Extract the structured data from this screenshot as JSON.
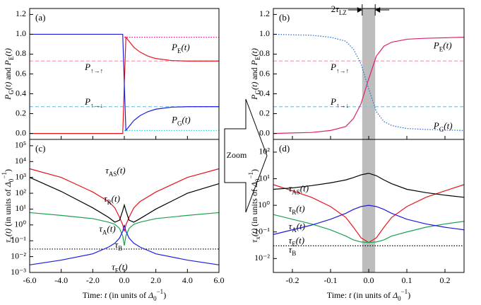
{
  "chart_data": [
    {
      "type": "line",
      "panel": "(a)",
      "xlim": [
        -6,
        6
      ],
      "ylim": [
        -0.06,
        1.26
      ],
      "log": false,
      "xticks": [
        {
          "value": -6,
          "label": "-6.0"
        },
        {
          "value": -4,
          "label": "-4.0"
        },
        {
          "value": -2,
          "label": "-2.0"
        },
        {
          "value": 0,
          "label": "0.0"
        },
        {
          "value": 2,
          "label": "2.0"
        },
        {
          "value": 4,
          "label": "4.0"
        },
        {
          "value": 6,
          "label": "6.0"
        }
      ],
      "yticks": [
        {
          "value": 0,
          "label": "0.0"
        },
        0.2,
        0.4,
        0.6,
        0.8,
        {
          "value": 1,
          "label": "1.0"
        },
        1.2
      ],
      "ylabel": [
        {
          "text": "P",
          "style": "i"
        },
        {
          "text": "G",
          "style": "sub"
        },
        {
          "text": "(t)",
          "style": "i"
        },
        {
          "text": " and ",
          "style": "r"
        },
        {
          "text": "P",
          "style": "i"
        },
        {
          "text": "E",
          "style": "sub"
        },
        {
          "text": "(t)",
          "style": "i"
        }
      ],
      "x": [
        -6,
        -4,
        -2,
        -0.5,
        -0.1,
        0,
        0.1,
        0.3,
        0.6,
        1,
        1.5,
        2,
        3,
        4,
        5,
        6
      ],
      "series": [
        {
          "name": [
            {
              "text": "P",
              "style": "i"
            },
            {
              "text": "↑→↑",
              "style": "sub"
            }
          ],
          "color": "#f5a0b4",
          "dash": "dash",
          "x": [
            -6,
            6
          ],
          "values": [
            0.73,
            0.73
          ]
        },
        {
          "name": [
            {
              "text": "P",
              "style": "i"
            },
            {
              "text": "↑→↓",
              "style": "sub"
            }
          ],
          "color": "#7ec8e6",
          "dash": "dash",
          "x": [
            -6,
            6
          ],
          "values": [
            0.27,
            0.27
          ]
        },
        {
          "color": "#e01f8c",
          "dash": "dot",
          "x": [
            0,
            6
          ],
          "values": [
            0.97,
            0.97
          ]
        },
        {
          "color": "#2fd6d6",
          "dash": "dot",
          "x": [
            0,
            6
          ],
          "values": [
            0.03,
            0.03
          ]
        },
        {
          "name": [
            {
              "text": "P",
              "style": "i"
            },
            {
              "text": "E",
              "style": "sub"
            },
            {
              "text": "(t)",
              "style": "i"
            }
          ],
          "color": "#e8141c",
          "dash": "solid",
          "values": [
            0,
            0,
            0,
            0,
            0,
            0.5,
            0.97,
            0.93,
            0.87,
            0.82,
            0.78,
            0.755,
            0.735,
            0.73,
            0.73,
            0.73
          ]
        },
        {
          "name": [
            {
              "text": "P",
              "style": "i"
            },
            {
              "text": "G",
              "style": "sub"
            },
            {
              "text": "(t)",
              "style": "i"
            }
          ],
          "color": "#1c1ce0",
          "dash": "solid",
          "values": [
            1,
            1,
            1,
            1,
            1,
            0.5,
            0.03,
            0.07,
            0.13,
            0.18,
            0.22,
            0.245,
            0.265,
            0.27,
            0.27,
            0.27
          ]
        }
      ]
    },
    {
      "type": "line",
      "panel": "(b)",
      "xlim": [
        -0.25,
        0.25
      ],
      "ylim": [
        -0.06,
        1.26
      ],
      "log": false,
      "xticks": [
        -0.2,
        -0.1,
        {
          "value": 0,
          "label": "0.0"
        },
        0.1,
        0.2
      ],
      "yticks": [
        {
          "value": 0,
          "label": "0.0"
        },
        0.2,
        0.4,
        0.6,
        0.8,
        {
          "value": 1,
          "label": "1.0"
        },
        1.2
      ],
      "ylabel": [
        {
          "text": "P",
          "style": "i"
        },
        {
          "text": "G",
          "style": "sub"
        },
        {
          "text": "(t)",
          "style": "i"
        },
        {
          "text": " and ",
          "style": "r"
        },
        {
          "text": "P",
          "style": "i"
        },
        {
          "text": "E",
          "style": "sub"
        },
        {
          "text": "(t)",
          "style": "i"
        }
      ],
      "band": [
        -0.017,
        0.017
      ],
      "band_label": [
        {
          "text": "2",
          "style": "r"
        },
        {
          "text": "τ",
          "style": "i"
        },
        {
          "text": "LZ",
          "style": "sub"
        }
      ],
      "x": [
        -0.25,
        -0.2,
        -0.15,
        -0.1,
        -0.06,
        -0.04,
        -0.02,
        0,
        0.02,
        0.04,
        0.06,
        0.1,
        0.15,
        0.2,
        0.25
      ],
      "series": [
        {
          "name": [
            {
              "text": "P",
              "style": "i"
            },
            {
              "text": "↑→↑",
              "style": "sub"
            }
          ],
          "color": "#f5a0b4",
          "dash": "dash",
          "x": [
            -0.25,
            0.25
          ],
          "values": [
            0.73,
            0.73
          ]
        },
        {
          "name": [
            {
              "text": "P",
              "style": "i"
            },
            {
              "text": "↑→↓",
              "style": "sub"
            }
          ],
          "color": "#7ec8e6",
          "dash": "dash",
          "x": [
            -0.25,
            0.25
          ],
          "values": [
            0.27,
            0.27
          ]
        },
        {
          "name": [
            {
              "text": "P",
              "style": "i"
            },
            {
              "text": "E",
              "style": "sub"
            },
            {
              "text": "(t)",
              "style": "i"
            }
          ],
          "color": "#e01f6f",
          "dash": "solid",
          "values": [
            0,
            0.005,
            0.01,
            0.03,
            0.07,
            0.15,
            0.3,
            0.55,
            0.78,
            0.88,
            0.92,
            0.95,
            0.96,
            0.965,
            0.97
          ]
        },
        {
          "name": [
            {
              "text": "P",
              "style": "i"
            },
            {
              "text": "G",
              "style": "sub"
            },
            {
              "text": "(t)",
              "style": "i"
            }
          ],
          "color": "#1c6ce0",
          "dash": "dot",
          "values": [
            1,
            0.995,
            0.99,
            0.97,
            0.93,
            0.85,
            0.7,
            0.45,
            0.22,
            0.12,
            0.08,
            0.05,
            0.04,
            0.035,
            0.03
          ]
        }
      ]
    },
    {
      "type": "line",
      "panel": "(c)",
      "xlim": [
        -6,
        6
      ],
      "ylim": [
        0.001,
        250000
      ],
      "log": true,
      "xticks": [
        {
          "value": -6,
          "label": "-6.0"
        },
        {
          "value": -4,
          "label": "-4.0"
        },
        {
          "value": -2,
          "label": "-2.0"
        },
        {
          "value": 0,
          "label": "0.0"
        },
        {
          "value": 2,
          "label": "2.0"
        },
        {
          "value": 4,
          "label": "4.0"
        },
        {
          "value": 6,
          "label": "6.0"
        }
      ],
      "yticks": [
        {
          "value": 0.001,
          "label": "10⁻³"
        },
        {
          "value": 0.01,
          "label": "10⁻²"
        },
        {
          "value": 0.1,
          "label": "10⁻¹"
        },
        {
          "value": 1,
          "label": "10⁰"
        },
        {
          "value": 10,
          "label": "10¹"
        },
        {
          "value": 100,
          "label": "10²"
        },
        {
          "value": 1000,
          "label": "10³"
        },
        {
          "value": 10000,
          "label": "10⁴"
        },
        {
          "value": 100000,
          "label": "10⁵"
        }
      ],
      "ylabel": [
        {
          "text": "τ",
          "style": "i"
        },
        {
          "text": "x",
          "style": "sub"
        },
        {
          "text": "(t)",
          "style": "i"
        },
        {
          "text": " (in units of ",
          "style": "r"
        },
        {
          "text": "Δ",
          "style": "i"
        },
        {
          "text": "0",
          "style": "sub"
        },
        {
          "text": "−1",
          "style": "sup"
        },
        {
          "text": ")",
          "style": "r"
        }
      ],
      "xlabel": [
        {
          "text": "Time: ",
          "style": "r"
        },
        {
          "text": "t",
          "style": "i"
        },
        {
          "text": " (in units of ",
          "style": "r"
        },
        {
          "text": "Δ",
          "style": "i"
        },
        {
          "text": "0",
          "style": "sub"
        },
        {
          "text": "−1",
          "style": "sup"
        },
        {
          "text": ")",
          "style": "r"
        }
      ],
      "x": [
        -6,
        -4,
        -2,
        -1,
        -0.6,
        -0.3,
        -0.1,
        0,
        0.1,
        0.3,
        0.6,
        1,
        2,
        4,
        6
      ],
      "series": [
        {
          "name": [
            {
              "text": "τ",
              "style": "i"
            },
            {
              "text": "B",
              "style": "sub"
            }
          ],
          "color": "#000000",
          "dash": "dot",
          "x": [
            -6,
            6
          ],
          "values": [
            0.03,
            0.03
          ]
        },
        {
          "name": [
            {
              "text": "τ",
              "style": "i"
            },
            {
              "text": "AS",
              "style": "sub"
            },
            {
              "text": "(t)",
              "style": "i"
            }
          ],
          "color": "#e8141c",
          "dash": "solid",
          "values": [
            3500,
            1000,
            120,
            30,
            12,
            3,
            1,
            0.4,
            1,
            3,
            12,
            30,
            120,
            1000,
            3500
          ]
        },
        {
          "name": [
            {
              "text": "τ",
              "style": "i"
            },
            {
              "text": "R",
              "style": "sub"
            },
            {
              "text": "(t)",
              "style": "i"
            }
          ],
          "color": "#000000",
          "dash": "solid",
          "values": [
            1000,
            130,
            12,
            3,
            1.5,
            2,
            8,
            18,
            8,
            2,
            1.5,
            2.5,
            10,
            100,
            400
          ]
        },
        {
          "name": [
            {
              "text": "τ",
              "style": "i"
            },
            {
              "text": "A",
              "style": "sub"
            },
            {
              "text": "(t)",
              "style": "i"
            }
          ],
          "color": "#1ea050",
          "dash": "solid",
          "values": [
            6,
            4,
            2.5,
            1.5,
            1.1,
            0.6,
            0.2,
            0.05,
            0.2,
            0.6,
            1.1,
            1.5,
            2.5,
            4,
            6
          ]
        },
        {
          "name": [
            {
              "text": "τ",
              "style": "i"
            },
            {
              "text": "E",
              "style": "sub"
            },
            {
              "text": "(t)",
              "style": "i"
            }
          ],
          "color": "#1c1ce0",
          "dash": "solid",
          "values": [
            0.003,
            0.006,
            0.015,
            0.04,
            0.07,
            0.15,
            0.4,
            1,
            0.4,
            0.15,
            0.07,
            0.04,
            0.015,
            0.006,
            0.003
          ]
        }
      ]
    },
    {
      "type": "line",
      "panel": "(d)",
      "xlim": [
        -0.25,
        0.25
      ],
      "ylim": [
        0.003,
        300
      ],
      "log": true,
      "xticks": [
        -0.2,
        -0.1,
        {
          "value": 0,
          "label": "0.0"
        },
        0.1,
        0.2
      ],
      "yticks": [
        {
          "value": 0.01,
          "label": "10⁻²"
        },
        {
          "value": 0.1,
          "label": "10⁻¹"
        },
        {
          "value": 1,
          "label": "10⁰"
        },
        {
          "value": 10,
          "label": "10¹"
        },
        {
          "value": 100,
          "label": "10²"
        }
      ],
      "ylabel": [
        {
          "text": "τ",
          "style": "i"
        },
        {
          "text": "x",
          "style": "sub"
        },
        {
          "text": "(t)",
          "style": "i"
        },
        {
          "text": " (in units of ",
          "style": "r"
        },
        {
          "text": "Δ",
          "style": "i"
        },
        {
          "text": "0",
          "style": "sub"
        },
        {
          "text": "−1",
          "style": "sup"
        },
        {
          "text": ")",
          "style": "r"
        }
      ],
      "xlabel": [
        {
          "text": "Time: ",
          "style": "r"
        },
        {
          "text": "t",
          "style": "i"
        },
        {
          "text": " (in units of ",
          "style": "r"
        },
        {
          "text": "Δ",
          "style": "i"
        },
        {
          "text": "0",
          "style": "sub"
        },
        {
          "text": "−1",
          "style": "sup"
        },
        {
          "text": ")",
          "style": "r"
        }
      ],
      "band": [
        -0.017,
        0.017
      ],
      "x": [
        -0.25,
        -0.2,
        -0.15,
        -0.1,
        -0.06,
        -0.04,
        -0.02,
        0,
        0.02,
        0.04,
        0.06,
        0.1,
        0.15,
        0.2,
        0.25
      ],
      "series": [
        {
          "name": [
            {
              "text": "τ",
              "style": "i"
            },
            {
              "text": "B",
              "style": "sub"
            }
          ],
          "color": "#000000",
          "dash": "dot",
          "x": [
            -0.25,
            0.25
          ],
          "values": [
            0.03,
            0.03
          ]
        },
        {
          "name": [
            {
              "text": "τ",
              "style": "i"
            },
            {
              "text": "AS",
              "style": "sub"
            },
            {
              "text": "(t)",
              "style": "i"
            }
          ],
          "color": "#e8141c",
          "dash": "solid",
          "values": [
            6,
            3.5,
            2,
            0.9,
            0.35,
            0.15,
            0.06,
            0.04,
            0.06,
            0.15,
            0.35,
            0.9,
            2,
            3.5,
            6
          ]
        },
        {
          "name": [
            {
              "text": "τ",
              "style": "i"
            },
            {
              "text": "R",
              "style": "sub"
            },
            {
              "text": "(t)",
              "style": "i"
            }
          ],
          "color": "#000000",
          "dash": "solid",
          "values": [
            4,
            4.5,
            5.5,
            7,
            9,
            11,
            14,
            16,
            13,
            9,
            6.5,
            4,
            3,
            2.4,
            2
          ]
        },
        {
          "name": [
            {
              "text": "τ",
              "style": "i"
            },
            {
              "text": "A",
              "style": "sub"
            },
            {
              "text": "(t)",
              "style": "i"
            }
          ],
          "color": "#1ea050",
          "dash": "solid",
          "values": [
            0.45,
            0.3,
            0.2,
            0.12,
            0.07,
            0.05,
            0.042,
            0.04,
            0.042,
            0.05,
            0.07,
            0.1,
            0.15,
            0.2,
            0.25
          ]
        },
        {
          "name": [
            {
              "text": "τ",
              "style": "i"
            },
            {
              "text": "E",
              "style": "sub"
            },
            {
              "text": "(t)",
              "style": "i"
            }
          ],
          "color": "#1c1ce0",
          "dash": "solid",
          "values": [
            0.08,
            0.12,
            0.18,
            0.3,
            0.5,
            0.7,
            0.9,
            1,
            0.9,
            0.7,
            0.5,
            0.3,
            0.2,
            0.15,
            0.12
          ]
        }
      ]
    }
  ],
  "zoom_label": "Zoom"
}
